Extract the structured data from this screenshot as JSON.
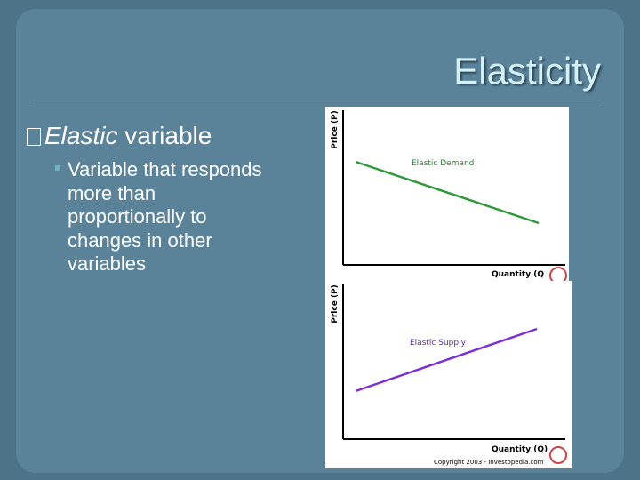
{
  "header": {
    "title": "Elasticity"
  },
  "bullets": [
    {
      "italic": "Elastic",
      "text": "variable",
      "sub": [
        "Variable that responds more than proportionally to changes in other variables"
      ]
    }
  ],
  "figures": [
    {
      "y_label": "Price (P)",
      "x_label": "Quantity (Q",
      "line_label": "Elastic Demand"
    },
    {
      "y_label": "Price (P)",
      "x_label": "Quantity (Q)",
      "line_label": "Elastic Supply",
      "credit": "Copyright 2003 - Investopedia.com"
    }
  ]
}
